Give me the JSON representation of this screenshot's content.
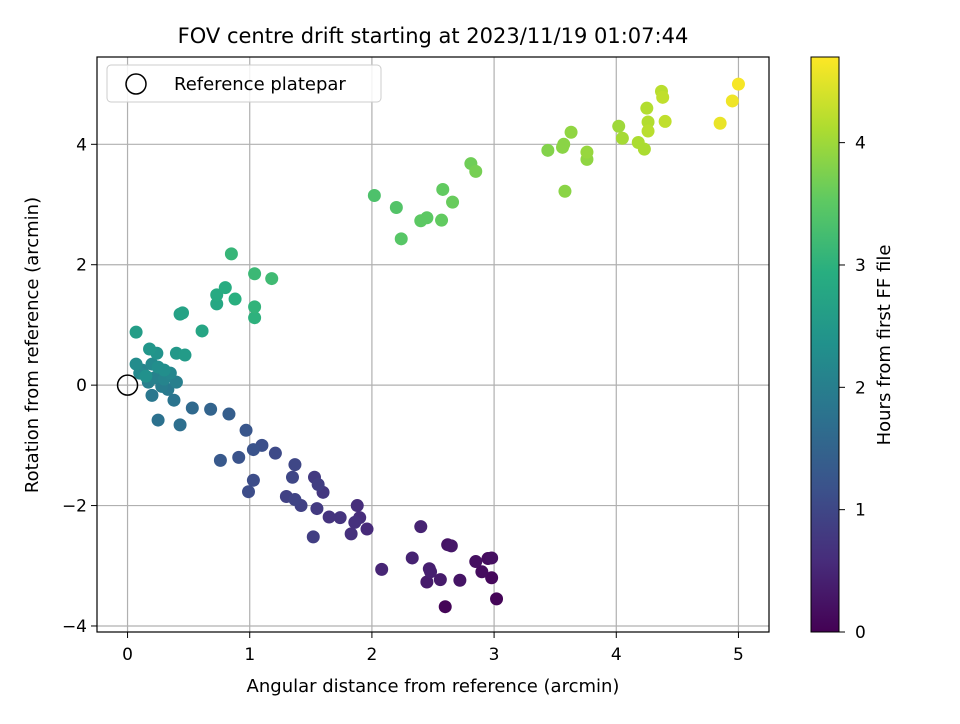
{
  "chart_data": {
    "type": "scatter",
    "title": "FOV centre drift starting at 2023/11/19 01:07:44",
    "xlabel": "Angular distance from reference (arcmin)",
    "ylabel": "Rotation from reference (arcmin)",
    "colorbar_label": "Hours from first FF file",
    "xlim": [
      -0.25,
      5.25
    ],
    "ylim": [
      -4.1,
      5.45
    ],
    "xticks": [
      "0",
      "1",
      "2",
      "3",
      "4",
      "5"
    ],
    "yticks": [
      "−4",
      "−2",
      "0",
      "2",
      "4"
    ],
    "colorbar_ticks": [
      "0",
      "1",
      "2",
      "3",
      "4"
    ],
    "colorbar_range": [
      0,
      4.7
    ],
    "colormap": "viridis",
    "grid": true,
    "legend": {
      "placement": "top-left",
      "entries": [
        "Reference platepar"
      ]
    },
    "reference_point": {
      "x": 0,
      "y": 0
    },
    "points": [
      {
        "x": 2.6,
        "y": -3.68,
        "t": 0.05
      },
      {
        "x": 3.02,
        "y": -3.55,
        "t": 0.05
      },
      {
        "x": 2.98,
        "y": -3.2,
        "t": 0.1
      },
      {
        "x": 2.95,
        "y": -2.88,
        "t": 0.15
      },
      {
        "x": 2.9,
        "y": -3.1,
        "t": 0.15
      },
      {
        "x": 2.98,
        "y": -2.87,
        "t": 0.2
      },
      {
        "x": 2.85,
        "y": -2.93,
        "t": 0.2
      },
      {
        "x": 2.72,
        "y": -3.24,
        "t": 0.25
      },
      {
        "x": 2.62,
        "y": -2.65,
        "t": 0.25
      },
      {
        "x": 2.65,
        "y": -2.67,
        "t": 0.3
      },
      {
        "x": 2.56,
        "y": -3.23,
        "t": 0.35
      },
      {
        "x": 2.45,
        "y": -3.27,
        "t": 0.35
      },
      {
        "x": 2.47,
        "y": -3.05,
        "t": 0.4
      },
      {
        "x": 2.48,
        "y": -3.1,
        "t": 0.4
      },
      {
        "x": 2.4,
        "y": -2.35,
        "t": 0.45
      },
      {
        "x": 2.33,
        "y": -2.87,
        "t": 0.45
      },
      {
        "x": 2.08,
        "y": -3.06,
        "t": 0.5
      },
      {
        "x": 1.96,
        "y": -2.39,
        "t": 0.55
      },
      {
        "x": 1.88,
        "y": -2.0,
        "t": 0.6
      },
      {
        "x": 1.9,
        "y": -2.2,
        "t": 0.6
      },
      {
        "x": 1.86,
        "y": -2.28,
        "t": 0.65
      },
      {
        "x": 1.83,
        "y": -2.47,
        "t": 0.65
      },
      {
        "x": 1.74,
        "y": -2.2,
        "t": 0.7
      },
      {
        "x": 1.65,
        "y": -2.19,
        "t": 0.7
      },
      {
        "x": 1.6,
        "y": -1.78,
        "t": 0.75
      },
      {
        "x": 1.55,
        "y": -2.05,
        "t": 0.8
      },
      {
        "x": 1.53,
        "y": -1.53,
        "t": 0.8
      },
      {
        "x": 1.56,
        "y": -1.65,
        "t": 0.85
      },
      {
        "x": 1.52,
        "y": -2.52,
        "t": 0.85
      },
      {
        "x": 1.42,
        "y": -2.0,
        "t": 0.9
      },
      {
        "x": 1.3,
        "y": -1.85,
        "t": 0.9
      },
      {
        "x": 1.37,
        "y": -1.9,
        "t": 0.95
      },
      {
        "x": 1.35,
        "y": -1.53,
        "t": 1.0
      },
      {
        "x": 1.37,
        "y": -1.32,
        "t": 1.0
      },
      {
        "x": 1.21,
        "y": -1.13,
        "t": 1.05
      },
      {
        "x": 1.03,
        "y": -1.58,
        "t": 1.1
      },
      {
        "x": 0.99,
        "y": -1.77,
        "t": 1.1
      },
      {
        "x": 1.1,
        "y": -1.0,
        "t": 1.15
      },
      {
        "x": 1.03,
        "y": -1.07,
        "t": 1.2
      },
      {
        "x": 0.91,
        "y": -1.2,
        "t": 1.2
      },
      {
        "x": 0.97,
        "y": -0.75,
        "t": 1.25
      },
      {
        "x": 0.76,
        "y": -1.25,
        "t": 1.3
      },
      {
        "x": 0.83,
        "y": -0.48,
        "t": 1.4
      },
      {
        "x": 0.68,
        "y": -0.4,
        "t": 1.5
      },
      {
        "x": 0.53,
        "y": -0.38,
        "t": 1.6
      },
      {
        "x": 0.43,
        "y": -0.66,
        "t": 1.7
      },
      {
        "x": 0.25,
        "y": -0.58,
        "t": 1.75
      },
      {
        "x": 0.38,
        "y": -0.25,
        "t": 1.8
      },
      {
        "x": 0.2,
        "y": -0.17,
        "t": 1.85
      },
      {
        "x": 0.33,
        "y": -0.07,
        "t": 1.9
      },
      {
        "x": 0.28,
        "y": -0.02,
        "t": 1.95
      },
      {
        "x": 0.4,
        "y": 0.05,
        "t": 2.0
      },
      {
        "x": 0.17,
        "y": 0.05,
        "t": 2.0
      },
      {
        "x": 0.22,
        "y": 0.12,
        "t": 2.05
      },
      {
        "x": 0.12,
        "y": 0.25,
        "t": 2.1
      },
      {
        "x": 0.3,
        "y": 0.1,
        "t": 2.1
      },
      {
        "x": 0.35,
        "y": 0.2,
        "t": 2.15
      },
      {
        "x": 0.2,
        "y": 0.35,
        "t": 2.2
      },
      {
        "x": 0.1,
        "y": 0.2,
        "t": 2.2
      },
      {
        "x": 0.07,
        "y": 0.35,
        "t": 2.25
      },
      {
        "x": 0.25,
        "y": 0.3,
        "t": 2.3
      },
      {
        "x": 0.3,
        "y": 0.25,
        "t": 2.3
      },
      {
        "x": 0.15,
        "y": 0.15,
        "t": 2.35
      },
      {
        "x": 0.24,
        "y": 0.53,
        "t": 2.4
      },
      {
        "x": 0.18,
        "y": 0.6,
        "t": 2.45
      },
      {
        "x": 0.4,
        "y": 0.53,
        "t": 2.5
      },
      {
        "x": 0.47,
        "y": 0.5,
        "t": 2.55
      },
      {
        "x": 0.07,
        "y": 0.88,
        "t": 2.6
      },
      {
        "x": 0.43,
        "y": 1.18,
        "t": 2.65
      },
      {
        "x": 0.45,
        "y": 1.2,
        "t": 2.7
      },
      {
        "x": 0.61,
        "y": 0.9,
        "t": 2.75
      },
      {
        "x": 0.73,
        "y": 1.35,
        "t": 2.8
      },
      {
        "x": 0.73,
        "y": 1.5,
        "t": 2.85
      },
      {
        "x": 0.8,
        "y": 1.62,
        "t": 2.9
      },
      {
        "x": 0.88,
        "y": 1.43,
        "t": 2.95
      },
      {
        "x": 1.04,
        "y": 1.12,
        "t": 3.0
      },
      {
        "x": 1.04,
        "y": 1.3,
        "t": 3.05
      },
      {
        "x": 0.85,
        "y": 2.18,
        "t": 3.1
      },
      {
        "x": 1.04,
        "y": 1.85,
        "t": 3.15
      },
      {
        "x": 1.18,
        "y": 1.77,
        "t": 3.2
      },
      {
        "x": 2.02,
        "y": 3.15,
        "t": 3.35
      },
      {
        "x": 2.2,
        "y": 2.95,
        "t": 3.4
      },
      {
        "x": 2.24,
        "y": 2.43,
        "t": 3.45
      },
      {
        "x": 2.4,
        "y": 2.73,
        "t": 3.5
      },
      {
        "x": 2.45,
        "y": 2.78,
        "t": 3.5
      },
      {
        "x": 2.57,
        "y": 2.74,
        "t": 3.55
      },
      {
        "x": 2.58,
        "y": 3.25,
        "t": 3.55
      },
      {
        "x": 2.66,
        "y": 3.04,
        "t": 3.6
      },
      {
        "x": 2.81,
        "y": 3.68,
        "t": 3.65
      },
      {
        "x": 2.85,
        "y": 3.55,
        "t": 3.7
      },
      {
        "x": 3.44,
        "y": 3.9,
        "t": 3.8
      },
      {
        "x": 3.56,
        "y": 3.95,
        "t": 3.85
      },
      {
        "x": 3.57,
        "y": 4.0,
        "t": 3.85
      },
      {
        "x": 3.58,
        "y": 3.22,
        "t": 3.85
      },
      {
        "x": 3.63,
        "y": 4.2,
        "t": 3.9
      },
      {
        "x": 3.76,
        "y": 3.75,
        "t": 3.9
      },
      {
        "x": 3.76,
        "y": 3.87,
        "t": 3.95
      },
      {
        "x": 4.02,
        "y": 4.3,
        "t": 4.0
      },
      {
        "x": 4.05,
        "y": 4.1,
        "t": 4.05
      },
      {
        "x": 4.18,
        "y": 4.03,
        "t": 4.1
      },
      {
        "x": 4.23,
        "y": 3.92,
        "t": 4.1
      },
      {
        "x": 4.25,
        "y": 4.6,
        "t": 4.15
      },
      {
        "x": 4.26,
        "y": 4.37,
        "t": 4.15
      },
      {
        "x": 4.26,
        "y": 4.22,
        "t": 4.2
      },
      {
        "x": 4.37,
        "y": 4.88,
        "t": 4.2
      },
      {
        "x": 4.38,
        "y": 4.78,
        "t": 4.25
      },
      {
        "x": 4.4,
        "y": 4.38,
        "t": 4.25
      },
      {
        "x": 4.85,
        "y": 4.35,
        "t": 4.55
      },
      {
        "x": 4.95,
        "y": 4.72,
        "t": 4.6
      },
      {
        "x": 5.0,
        "y": 5.0,
        "t": 4.65
      }
    ]
  }
}
